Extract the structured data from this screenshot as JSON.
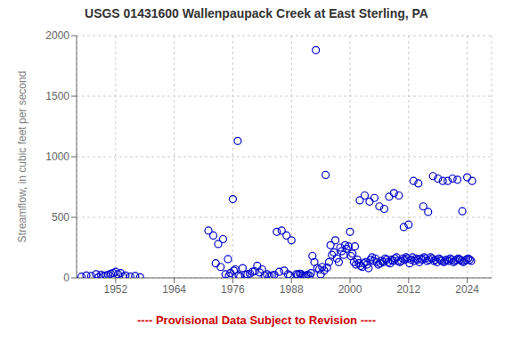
{
  "chart_data": {
    "type": "scatter",
    "title": "USGS 01431600 Wallenpaupack Creek at East Sterling, PA",
    "ylabel": "Streamflow, in cubic feet per second",
    "xlim": [
      1944,
      2029
    ],
    "ylim": [
      0,
      2000
    ],
    "xticks": [
      1952,
      1964,
      1976,
      1988,
      2000,
      2012,
      2024
    ],
    "yticks": [
      0,
      500,
      1000,
      1500,
      2000
    ],
    "grid": true,
    "color": "#0000CC",
    "marker": "circle",
    "annotations": [
      {
        "text": "---- Provisional Data Subject to Revision ----",
        "color": "#CC0000"
      }
    ],
    "x": [
      1945,
      1946,
      1947,
      1948,
      1949,
      1950,
      1951,
      1952,
      1953,
      1954,
      1955,
      1956,
      1957,
      1971,
      1972,
      1973,
      1974,
      1975,
      1976,
      1977,
      1978,
      1979,
      1980,
      1981,
      1982,
      1983,
      1984,
      1985,
      1986,
      1987,
      1988,
      1989,
      1990,
      1991,
      1992,
      1993,
      1994,
      1995,
      1996,
      1997,
      1998,
      1999,
      2000,
      2001,
      2002,
      2003,
      2004,
      2005,
      2006,
      2007,
      2008,
      2009,
      2010,
      2011,
      2012,
      2013,
      2014,
      2015,
      2016,
      2017,
      2018,
      2019,
      2020,
      2021,
      2022,
      2023,
      2024,
      2025,
      1948.5,
      1949.5,
      1950.5,
      1951.5,
      1952.5,
      1953.5,
      1972.5,
      1973.5,
      1974.5,
      1975.2,
      1975.5,
      1976.2,
      1976.5,
      1977.2,
      1977.5,
      1978.5,
      1979.5,
      1980.5,
      1981.5,
      1982.5,
      1983.5,
      1984.5,
      1985.5,
      1986.5,
      1987.3,
      1987.7,
      1989.3,
      1989.7,
      1990.3,
      1990.7,
      1991.3,
      1991.7,
      1992.3,
      1992.7,
      1993.3,
      1993.7,
      1994.3,
      1994.7,
      1995.3,
      1995.7,
      1996.3,
      1996.7,
      1997.3,
      1997.7,
      1998.3,
      1998.7,
      1999.3,
      1999.7,
      2000.2,
      2000.5,
      2000.8,
      2001.2,
      2001.5,
      2001.8,
      2002.2,
      2002.5,
      2002.8,
      2003.2,
      2003.5,
      2003.8,
      2004.2,
      2004.5,
      2004.8,
      2005.2,
      2005.5,
      2005.8,
      2006.2,
      2006.5,
      2006.8,
      2007.2,
      2007.5,
      2007.8,
      2008.2,
      2008.5,
      2008.8,
      2009.2,
      2009.5,
      2009.8,
      2010.2,
      2010.5,
      2010.8,
      2011.2,
      2011.5,
      2011.8,
      2012.2,
      2012.5,
      2012.8,
      2013.2,
      2013.5,
      2013.8,
      2014.2,
      2014.5,
      2014.8,
      2015.2,
      2015.5,
      2015.8,
      2016.2,
      2016.5,
      2016.8,
      2017.2,
      2017.5,
      2017.8,
      2018.2,
      2018.5,
      2018.8,
      2019.2,
      2019.5,
      2019.8,
      2020.2,
      2020.5,
      2020.8,
      2021.2,
      2021.5,
      2021.8,
      2022.2,
      2022.5,
      2022.8,
      2023.2,
      2023.5,
      2023.8,
      2024.2,
      2024.5,
      2024.8
    ],
    "values": [
      10,
      20,
      15,
      30,
      25,
      20,
      35,
      50,
      40,
      20,
      10,
      15,
      5,
      390,
      350,
      280,
      320,
      155,
      650,
      1130,
      80,
      30,
      50,
      100,
      70,
      30,
      20,
      380,
      390,
      350,
      310,
      30,
      30,
      20,
      40,
      1880,
      30,
      850,
      270,
      310,
      250,
      270,
      380,
      260,
      640,
      680,
      630,
      660,
      590,
      570,
      670,
      700,
      680,
      420,
      440,
      800,
      780,
      590,
      545,
      840,
      820,
      800,
      800,
      820,
      810,
      550,
      830,
      800,
      5,
      15,
      25,
      40,
      30,
      10,
      120,
      90,
      30,
      15,
      40,
      60,
      70,
      20,
      10,
      25,
      35,
      55,
      45,
      20,
      15,
      25,
      50,
      60,
      30,
      20,
      25,
      35,
      20,
      15,
      25,
      20,
      180,
      130,
      80,
      70,
      90,
      60,
      85,
      130,
      190,
      210,
      160,
      130,
      220,
      190,
      240,
      260,
      180,
      200,
      130,
      110,
      150,
      120,
      100,
      90,
      120,
      130,
      110,
      80,
      150,
      170,
      140,
      160,
      130,
      110,
      120,
      140,
      130,
      160,
      150,
      130,
      120,
      150,
      140,
      160,
      170,
      140,
      130,
      140,
      160,
      150,
      170,
      160,
      120,
      150,
      170,
      140,
      160,
      150,
      130,
      160,
      150,
      170,
      160,
      140,
      150,
      170,
      160,
      140,
      150,
      130,
      160,
      150,
      140,
      130,
      140,
      150,
      140,
      160,
      150,
      130,
      140,
      150,
      160,
      150,
      140,
      130,
      140,
      150,
      160,
      150,
      140
    ]
  }
}
